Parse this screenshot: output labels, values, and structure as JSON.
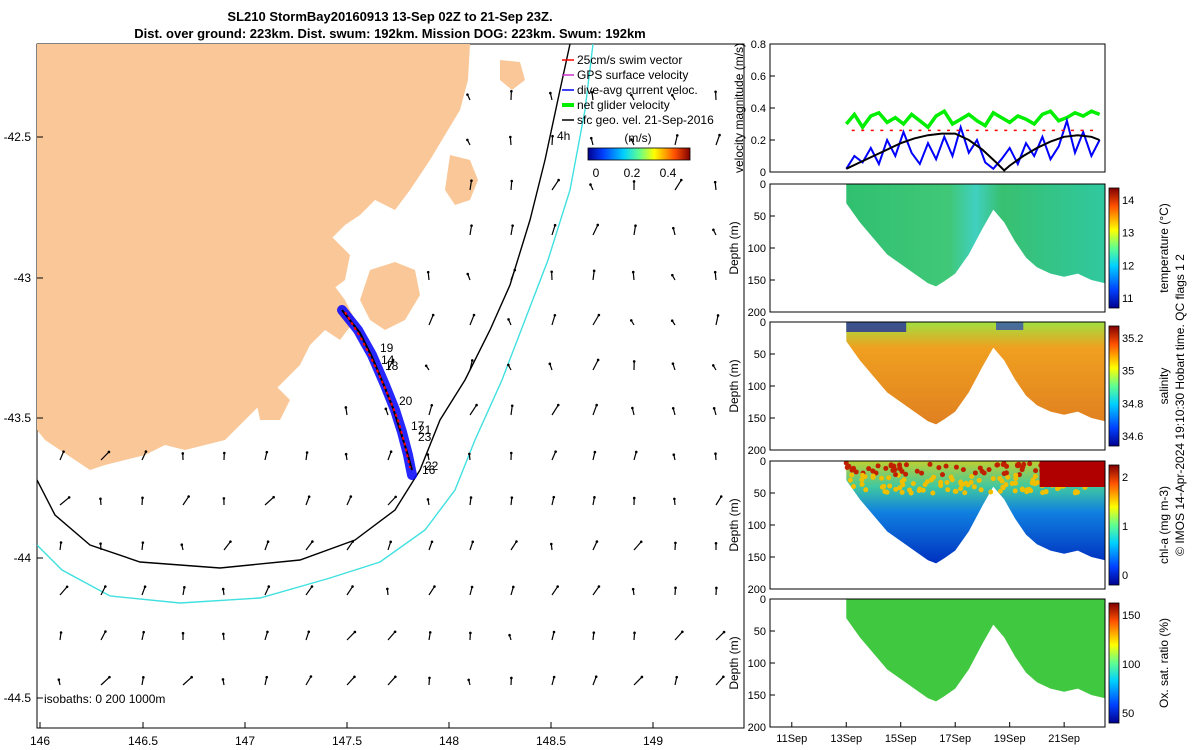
{
  "figure": {
    "title_line1": "SL210 StormBay20160913 13-Sep 02Z to 21-Sep 23Z.",
    "title_line2": "Dist. over ground: 223km. Dist. swum: 192km. Mission DOG: 223km. Swum: 192km",
    "credit": "© IMOS 14-Apr-2024 19:10:30 Hobart time. QC flags 1  2"
  },
  "map": {
    "x_ticks": [
      "146",
      "146.5",
      "147",
      "147.5",
      "148",
      "148.5",
      "149"
    ],
    "y_ticks": [
      "-42.5",
      "-43",
      "-43.5",
      "-44",
      "-44.5"
    ],
    "legend": [
      {
        "label": "25cm/s swim vector",
        "color": "#ff0000"
      },
      {
        "label": "GPS surface velocity",
        "color": "#cc33cc"
      },
      {
        "label": "dive-avg current veloc.",
        "color": "#0000ff"
      },
      {
        "label": "net glider velocity",
        "color": "#00ee00"
      },
      {
        "label": "sfc geo. vel. 21-Sep-2016",
        "color": "#000000"
      }
    ],
    "colorbar": {
      "unit": "(m/s)",
      "ticks": [
        "0",
        "0.2",
        "0.4"
      ]
    },
    "isobath_label": "isobaths: 0   200  1000m",
    "marker_4h": "4h",
    "track_labels": [
      "19",
      "14",
      "18",
      "20",
      "17",
      "21",
      "23",
      "22",
      "16"
    ],
    "land_color": "#fac898",
    "isobath_200_color": "#000000",
    "isobath_1000_color": "#40e0e0"
  },
  "velocity_panel": {
    "ylabel": "velocity magnitude (m/s)",
    "y_ticks": [
      "0",
      "0.2",
      "0.4",
      "0.6",
      "0.8"
    ]
  },
  "sections": [
    {
      "label": "temperature (°C)",
      "depth_label": "Depth (m)",
      "cbar_ticks": [
        "11",
        "12",
        "13",
        "14"
      ]
    },
    {
      "label": "salinity",
      "depth_label": "Depth (m)",
      "cbar_ticks": [
        "34.6",
        "34.8",
        "35",
        "35.2"
      ]
    },
    {
      "label": "chl-a (mg m-3)",
      "depth_label": "Depth (m)",
      "cbar_ticks": [
        "0",
        "1",
        "2"
      ]
    },
    {
      "label": "Ox. sat. ratio (%)",
      "depth_label": "Depth (m)",
      "cbar_ticks": [
        "50",
        "100",
        "150"
      ]
    }
  ],
  "depth_ticks": [
    "0",
    "50",
    "100",
    "150",
    "200"
  ],
  "time_ticks": [
    "11Sep",
    "13Sep",
    "15Sep",
    "17Sep",
    "19Sep",
    "21Sep"
  ],
  "chart_data": [
    {
      "type": "line",
      "x_unit": "days (Sep 2016)",
      "xlim": [
        10.2,
        22.5
      ],
      "ylim": [
        0,
        0.8
      ],
      "series": [
        {
          "name": "net glider velocity",
          "color": "#00ee00",
          "x": [
            13.0,
            13.3,
            13.6,
            13.9,
            14.2,
            14.5,
            14.8,
            15.1,
            15.4,
            15.7,
            16.0,
            16.3,
            16.6,
            16.9,
            17.2,
            17.5,
            17.8,
            18.1,
            18.4,
            18.7,
            19.0,
            19.3,
            19.6,
            19.9,
            20.2,
            20.5,
            20.8,
            21.1,
            21.4,
            21.7,
            22.0,
            22.3
          ],
          "y": [
            0.3,
            0.36,
            0.28,
            0.35,
            0.37,
            0.31,
            0.34,
            0.3,
            0.36,
            0.32,
            0.28,
            0.35,
            0.38,
            0.3,
            0.33,
            0.36,
            0.32,
            0.29,
            0.37,
            0.34,
            0.31,
            0.35,
            0.33,
            0.3,
            0.36,
            0.38,
            0.32,
            0.34,
            0.37,
            0.35,
            0.38,
            0.36
          ]
        },
        {
          "name": "dive-avg current veloc.",
          "color": "#0000ff",
          "x": [
            13.0,
            13.3,
            13.6,
            13.9,
            14.2,
            14.5,
            14.8,
            15.1,
            15.4,
            15.7,
            16.0,
            16.3,
            16.6,
            16.9,
            17.2,
            17.5,
            17.8,
            18.1,
            18.4,
            18.7,
            19.0,
            19.3,
            19.6,
            19.9,
            20.2,
            20.5,
            20.8,
            21.1,
            21.4,
            21.7,
            22.0,
            22.3
          ],
          "y": [
            0.02,
            0.1,
            0.06,
            0.15,
            0.05,
            0.2,
            0.1,
            0.25,
            0.12,
            0.05,
            0.18,
            0.08,
            0.22,
            0.1,
            0.28,
            0.12,
            0.2,
            0.06,
            0.02,
            0.08,
            0.15,
            0.05,
            0.18,
            0.1,
            0.22,
            0.08,
            0.16,
            0.32,
            0.12,
            0.25,
            0.1,
            0.2
          ]
        },
        {
          "name": "sfc geo. vel.",
          "color": "#000000",
          "x": [
            13.0,
            13.5,
            14.0,
            14.5,
            15.0,
            15.5,
            16.0,
            16.5,
            17.0,
            17.5,
            18.0,
            18.5,
            18.8,
            19.0,
            19.5,
            20.0,
            20.5,
            21.0,
            21.5,
            22.0,
            22.3
          ],
          "y": [
            0.02,
            0.06,
            0.1,
            0.14,
            0.18,
            0.21,
            0.23,
            0.24,
            0.24,
            0.2,
            0.14,
            0.06,
            0.01,
            0.04,
            0.1,
            0.15,
            0.19,
            0.22,
            0.23,
            0.22,
            0.2
          ]
        }
      ]
    },
    {
      "type": "heatmap",
      "description": "Depth-time sections",
      "xlim": [
        10.2,
        22.5
      ],
      "ylim_depth": [
        0,
        200
      ],
      "profile_bottom": {
        "x": [
          13.0,
          13.5,
          14.0,
          14.5,
          15.0,
          15.5,
          16.0,
          16.3,
          16.6,
          17.0,
          17.5,
          18.0,
          18.4,
          18.8,
          19.2,
          19.6,
          20.0,
          20.5,
          21.0,
          21.5,
          22.0,
          22.5
        ],
        "depth": [
          30,
          60,
          85,
          110,
          125,
          140,
          155,
          160,
          152,
          140,
          110,
          70,
          40,
          60,
          90,
          115,
          130,
          140,
          145,
          140,
          150,
          155
        ]
      },
      "variables": [
        "temperature",
        "salinity",
        "chl-a",
        "oxygen saturation"
      ]
    }
  ]
}
